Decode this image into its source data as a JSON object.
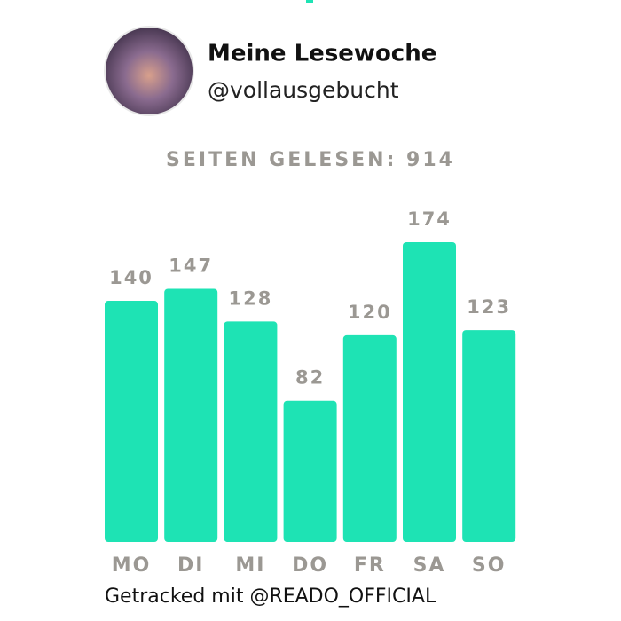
{
  "profile": {
    "name": "Meine Lesewoche",
    "handle": "@vollausgebucht"
  },
  "chart_data": {
    "type": "bar",
    "title": "SEITEN GELESEN: 914",
    "categories": [
      "MO",
      "DI",
      "MI",
      "DO",
      "FR",
      "SA",
      "SO"
    ],
    "values": [
      140,
      147,
      128,
      82,
      120,
      174,
      123
    ],
    "color": "#1ee3b4"
  },
  "footer": {
    "text": "Getracked mit @READO_OFFICIAL"
  }
}
